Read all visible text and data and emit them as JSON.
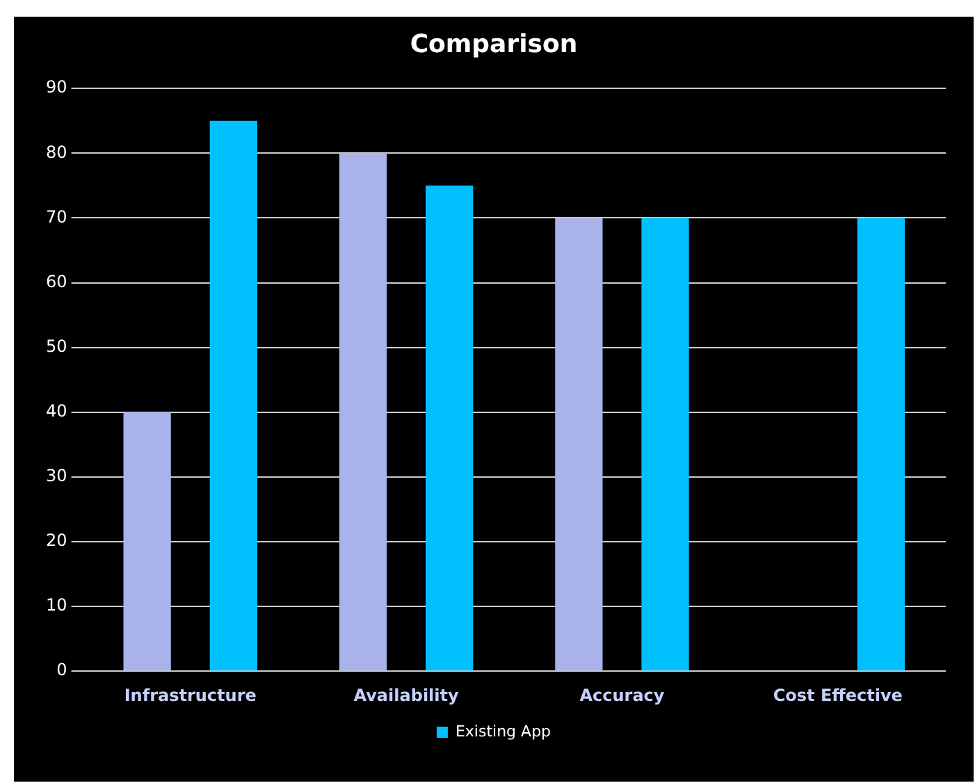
{
  "chart_data": {
    "type": "bar",
    "title": "Comparison",
    "categories": [
      "Infrastructure",
      "Availability",
      "Accuracy",
      "Cost Effective"
    ],
    "series": [
      {
        "color": "#a9b3ea",
        "values": [
          40,
          80,
          70,
          0
        ]
      },
      {
        "name": "Existing App",
        "color": "#00c0ff",
        "values": [
          85,
          75,
          70,
          70
        ]
      }
    ],
    "ylim": [
      0,
      90
    ],
    "yticks": [
      0,
      10,
      20,
      30,
      40,
      50,
      60,
      70,
      80,
      90
    ],
    "grid": "y",
    "legend": "bottom"
  }
}
